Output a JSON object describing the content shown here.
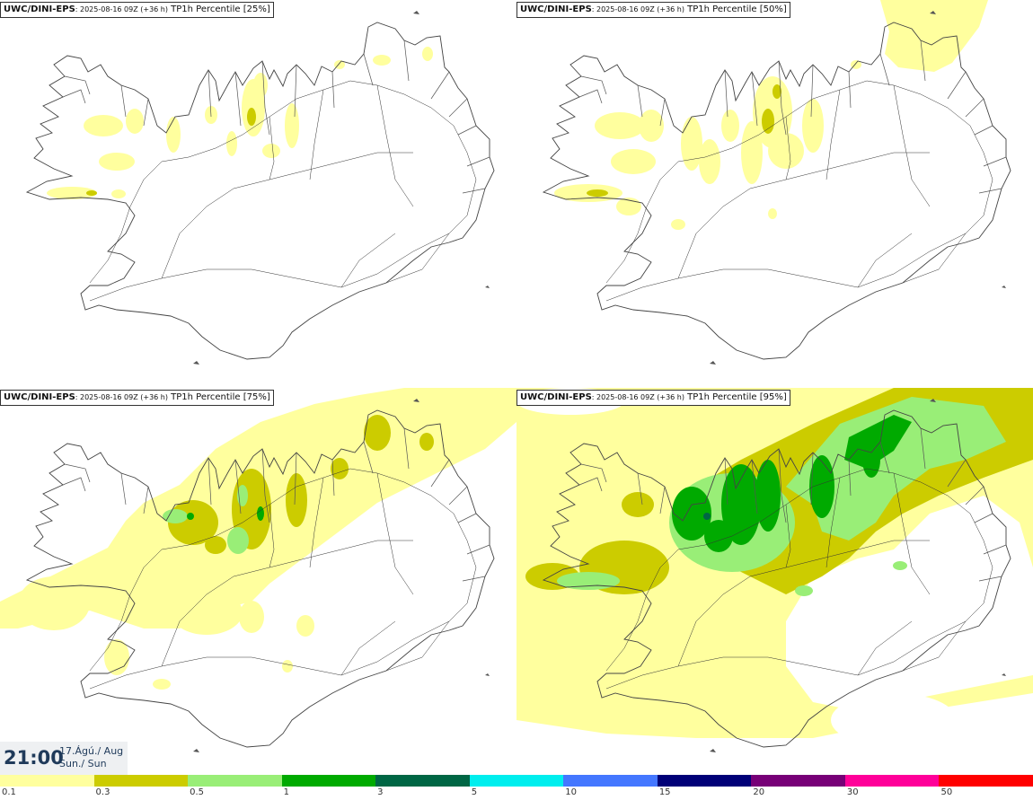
{
  "panels": [
    {
      "model": "UWC/DINI-EPS",
      "run": ": 2025-08-16 09Z (+36 h)",
      "product": " TP1h Percentile [25%]"
    },
    {
      "model": "UWC/DINI-EPS",
      "run": ": 2025-08-16 09Z (+36 h)",
      "product": " TP1h Percentile [50%]"
    },
    {
      "model": "UWC/DINI-EPS",
      "run": ": 2025-08-16 09Z (+36 h)",
      "product": " TP1h Percentile [75%]"
    },
    {
      "model": "UWC/DINI-EPS",
      "run": ": 2025-08-16 09Z (+36 h)",
      "product": " TP1h Percentile [95%]"
    }
  ],
  "valid_time": {
    "time": "21:00",
    "date_line1": "17.Ágú./ Aug",
    "date_line2": "Sun./ Sun"
  },
  "legend": {
    "colors": [
      "#ffff9e",
      "#cccc00",
      "#99ee77",
      "#00aa00",
      "#006644",
      "#00eeee",
      "#4477ff",
      "#000077",
      "#770077",
      "#ff0099",
      "#ff0000"
    ],
    "labels": [
      "0.1",
      "0.3",
      "0.5",
      "1",
      "3",
      "5",
      "10",
      "15",
      "20",
      "30",
      "50"
    ]
  }
}
